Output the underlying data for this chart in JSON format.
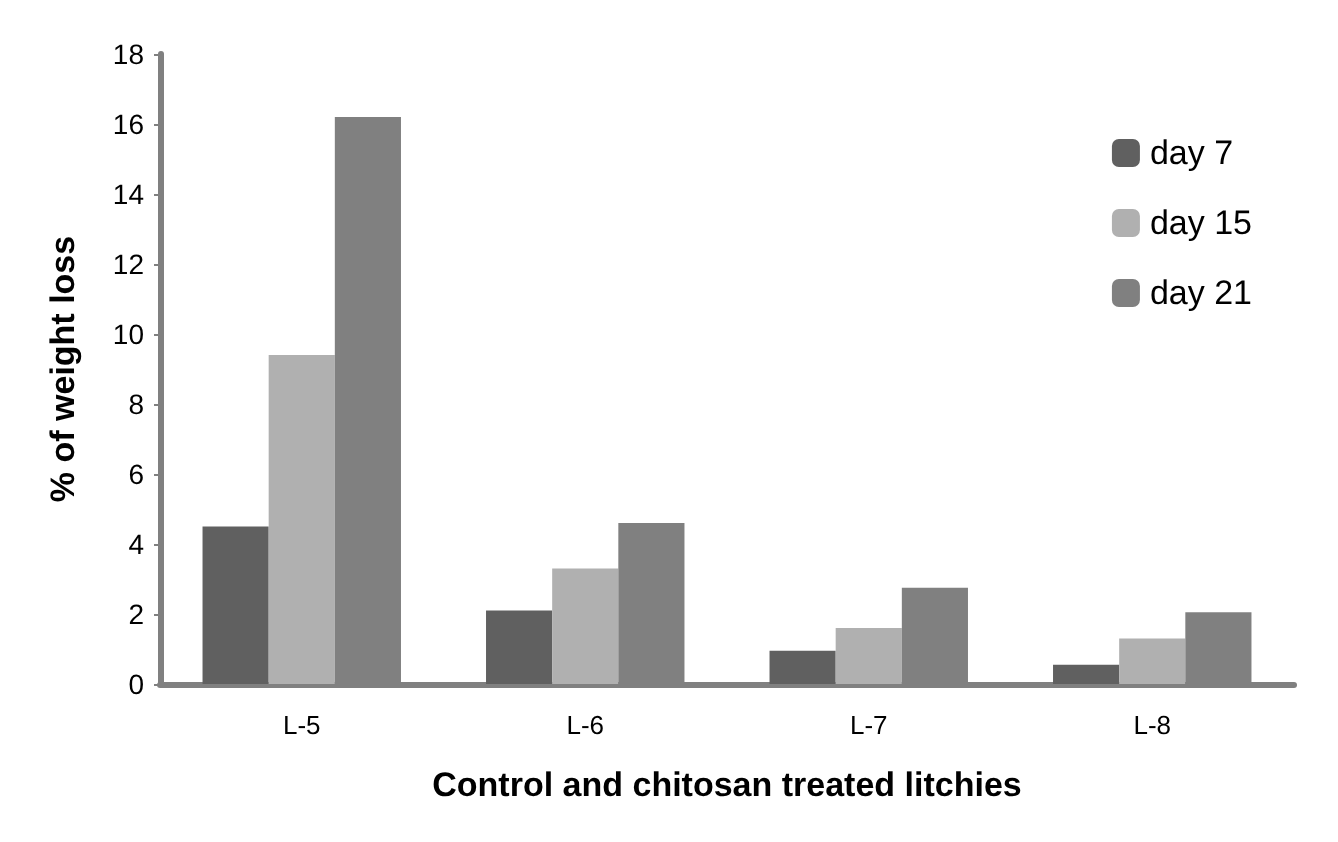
{
  "chart_data": {
    "type": "bar",
    "xlabel": "Control and chitosan treated litchies",
    "ylabel": "% of weight loss",
    "categories": [
      "L-5",
      "L-6",
      "L-7",
      "L-8"
    ],
    "series": [
      {
        "name": "day 7",
        "color": "#606060",
        "values": [
          4.5,
          2.1,
          0.95,
          0.55
        ]
      },
      {
        "name": "day 15",
        "color": "#b0b0b0",
        "values": [
          9.4,
          3.3,
          1.6,
          1.3
        ]
      },
      {
        "name": "day 21",
        "color": "#808080",
        "values": [
          16.2,
          4.6,
          2.75,
          2.05
        ]
      }
    ],
    "ylim": [
      0,
      18
    ],
    "yticks": [
      0,
      2,
      4,
      6,
      8,
      10,
      12,
      14,
      16,
      18
    ],
    "grid": false,
    "legend": "top right"
  }
}
